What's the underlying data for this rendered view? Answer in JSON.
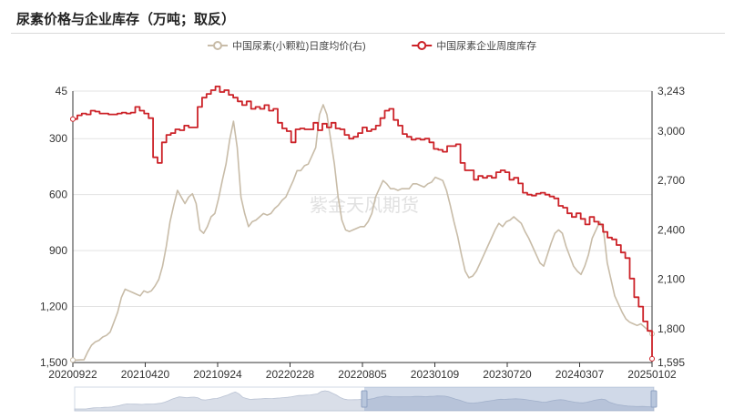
{
  "title": "尿素价格与企业库存（万吨；取反）",
  "watermark": "紫金天风期货",
  "chart_data": {
    "type": "line",
    "legend_position": "top-center",
    "grid": true,
    "x_ticks": [
      "20200922",
      "20210420",
      "20210924",
      "20220228",
      "20220805",
      "20230109",
      "20230720",
      "20240307",
      "20250102"
    ],
    "left_axis": {
      "ticks": [
        "45",
        "300",
        "600",
        "900",
        "1,200",
        "1,500"
      ],
      "range": [
        45,
        1500
      ],
      "inverted": true
    },
    "right_axis": {
      "ticks": [
        "3,243",
        "3,000",
        "2,700",
        "2,400",
        "2,100",
        "1,800",
        "1,595"
      ],
      "range": [
        1595,
        3243
      ]
    },
    "series": [
      {
        "name": "中国尿素(小颗粒)日度均价(右)",
        "axis": "right",
        "color": "#c8bca8",
        "style": "smooth",
        "values": [
          1610,
          1610,
          1611,
          1612,
          1660,
          1700,
          1720,
          1730,
          1750,
          1760,
          1780,
          1840,
          1900,
          1990,
          2040,
          2030,
          2020,
          2010,
          2000,
          2030,
          2020,
          2030,
          2060,
          2100,
          2180,
          2300,
          2450,
          2550,
          2640,
          2600,
          2560,
          2600,
          2620,
          2560,
          2400,
          2380,
          2420,
          2480,
          2500,
          2590,
          2700,
          2800,
          2950,
          3060,
          2900,
          2600,
          2500,
          2420,
          2450,
          2460,
          2480,
          2500,
          2490,
          2500,
          2530,
          2550,
          2580,
          2600,
          2650,
          2700,
          2760,
          2760,
          2790,
          2800,
          2850,
          2900,
          3100,
          3160,
          3100,
          2950,
          2800,
          2600,
          2460,
          2400,
          2390,
          2400,
          2410,
          2420,
          2420,
          2450,
          2500,
          2600,
          2650,
          2700,
          2680,
          2650,
          2650,
          2640,
          2650,
          2650,
          2650,
          2680,
          2680,
          2670,
          2660,
          2680,
          2690,
          2720,
          2710,
          2700,
          2640,
          2550,
          2450,
          2360,
          2250,
          2150,
          2110,
          2120,
          2150,
          2200,
          2250,
          2300,
          2350,
          2400,
          2440,
          2420,
          2450,
          2460,
          2480,
          2460,
          2440,
          2390,
          2350,
          2300,
          2250,
          2200,
          2180,
          2250,
          2320,
          2380,
          2400,
          2380,
          2300,
          2240,
          2180,
          2150,
          2130,
          2180,
          2250,
          2350,
          2400,
          2450,
          2400,
          2200,
          2100,
          2000,
          1950,
          1900,
          1860,
          1840,
          1830,
          1820,
          1830,
          1810,
          1790,
          1770
        ]
      },
      {
        "name": "中国尿素企业周度库存",
        "axis": "left",
        "color": "#cc2228",
        "style": "step",
        "values": [
          195,
          175,
          165,
          170,
          150,
          155,
          165,
          165,
          170,
          170,
          165,
          160,
          165,
          160,
          130,
          150,
          165,
          190,
          400,
          430,
          320,
          280,
          270,
          250,
          255,
          230,
          240,
          240,
          130,
          80,
          60,
          40,
          20,
          50,
          40,
          65,
          80,
          100,
          120,
          100,
          140,
          130,
          140,
          120,
          150,
          140,
          215,
          245,
          260,
          320,
          250,
          245,
          250,
          250,
          215,
          255,
          220,
          240,
          215,
          245,
          250,
          280,
          300,
          290,
          270,
          240,
          260,
          250,
          230,
          190,
          150,
          140,
          200,
          230,
          275,
          290,
          305,
          300,
          305,
          300,
          320,
          355,
          360,
          370,
          340,
          340,
          330,
          430,
          470,
          470,
          520,
          500,
          510,
          500,
          510,
          480,
          470,
          480,
          520,
          510,
          540,
          590,
          600,
          605,
          595,
          590,
          600,
          610,
          620,
          660,
          670,
          700,
          720,
          700,
          730,
          760,
          720,
          745,
          760,
          800,
          830,
          840,
          870,
          910,
          940,
          1050,
          1150,
          1200,
          1280,
          1330,
          1480
        ]
      }
    ]
  }
}
